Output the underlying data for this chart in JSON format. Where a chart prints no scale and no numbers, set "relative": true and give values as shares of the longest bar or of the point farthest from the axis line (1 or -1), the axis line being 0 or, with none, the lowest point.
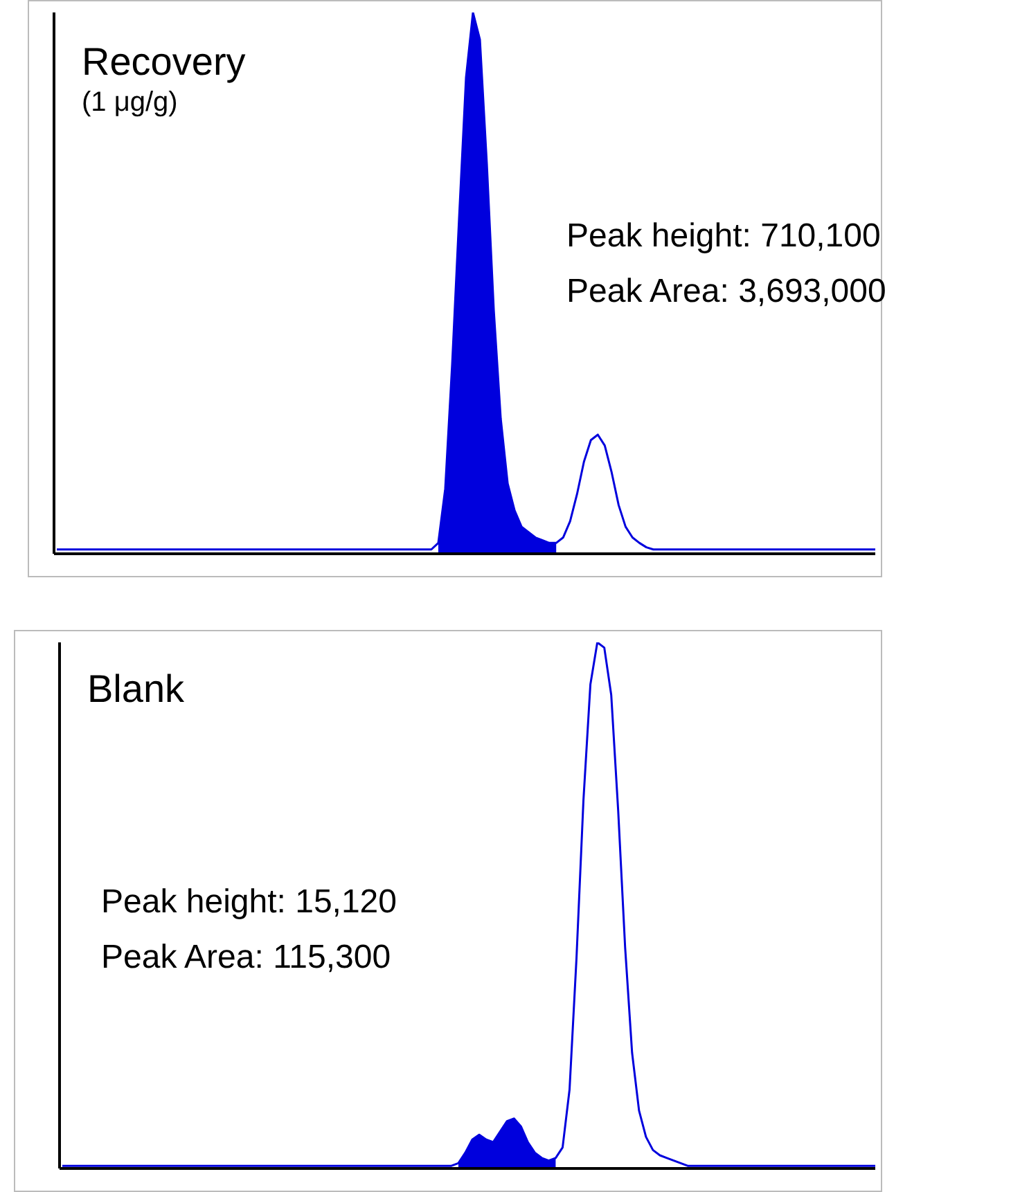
{
  "chart_data": [
    {
      "type": "line",
      "relative": true,
      "title": "Recovery",
      "subtitle": "(1 μg/g)",
      "annotations": [
        "Peak height: 710,100",
        "Peak Area: 3,693,000"
      ],
      "tick_labels": false,
      "grid": false,
      "categories": [
        null,
        null,
        null,
        null,
        null,
        null,
        null,
        null,
        null,
        null,
        null,
        null,
        null,
        null,
        null,
        null,
        null,
        null,
        null,
        null,
        null,
        null,
        null,
        null,
        null,
        null,
        null,
        null,
        null,
        null,
        null,
        null,
        null,
        null,
        null,
        null,
        null,
        null,
        null,
        null,
        null,
        null,
        null,
        null,
        null,
        null,
        null,
        null,
        null,
        null,
        null,
        null,
        null,
        null,
        null,
        null,
        null,
        null,
        null,
        null,
        null,
        null,
        null,
        null,
        null,
        null,
        null,
        null,
        null,
        null,
        null,
        null,
        null,
        null,
        null,
        null,
        null,
        null,
        null,
        null,
        null,
        null,
        null,
        null,
        null,
        null,
        null,
        null,
        null,
        null,
        null,
        null,
        null,
        null,
        null,
        null,
        null,
        null,
        null,
        null,
        null,
        null,
        null,
        null,
        null,
        null,
        null,
        null,
        null,
        null,
        null,
        null,
        null,
        null,
        null,
        null,
        null,
        null,
        null
      ],
      "series": [
        {
          "color": "#0000dd",
          "values": [
            0.008,
            0.008,
            0.008,
            0.008,
            0.008,
            0.008,
            0.008,
            0.008,
            0.008,
            0.008,
            0.008,
            0.008,
            0.008,
            0.008,
            0.008,
            0.008,
            0.008,
            0.008,
            0.008,
            0.008,
            0.008,
            0.008,
            0.008,
            0.008,
            0.008,
            0.008,
            0.008,
            0.008,
            0.008,
            0.008,
            0.008,
            0.008,
            0.008,
            0.008,
            0.008,
            0.008,
            0.008,
            0.008,
            0.008,
            0.008,
            0.008,
            0.008,
            0.008,
            0.008,
            0.008,
            0.008,
            0.008,
            0.008,
            0.008,
            0.008,
            0.008,
            0.008,
            0.008,
            0.008,
            0.008,
            0.02,
            0.12,
            0.35,
            0.62,
            0.88,
            1.0,
            0.95,
            0.72,
            0.45,
            0.25,
            0.13,
            0.08,
            0.05,
            0.04,
            0.03,
            0.025,
            0.02,
            0.02,
            0.03,
            0.06,
            0.11,
            0.17,
            0.21,
            0.22,
            0.2,
            0.15,
            0.09,
            0.05,
            0.03,
            0.02,
            0.012,
            0.008,
            0.008,
            0.008,
            0.008,
            0.008,
            0.008,
            0.008,
            0.008,
            0.008,
            0.008,
            0.008,
            0.008,
            0.008,
            0.008,
            0.008,
            0.008,
            0.008,
            0.008,
            0.008,
            0.008,
            0.008,
            0.008,
            0.008,
            0.008,
            0.008,
            0.008,
            0.008,
            0.008,
            0.008,
            0.008,
            0.008,
            0.008,
            0.008
          ],
          "lower": [
            null,
            null,
            null,
            null,
            null,
            null,
            null,
            null,
            null,
            null,
            null,
            null,
            null,
            null,
            null,
            null,
            null,
            null,
            null,
            null,
            null,
            null,
            null,
            null,
            null,
            null,
            null,
            null,
            null,
            null,
            null,
            null,
            null,
            null,
            null,
            null,
            null,
            null,
            null,
            null,
            null,
            null,
            null,
            null,
            null,
            null,
            null,
            null,
            null,
            null,
            null,
            null,
            null,
            null,
            null,
            0,
            0,
            0,
            0,
            0,
            0,
            0,
            0,
            0,
            0,
            0,
            0,
            0,
            0,
            0,
            0,
            0,
            0,
            null,
            null,
            null,
            null,
            null,
            null,
            null,
            null,
            null,
            null,
            null,
            null,
            null,
            null,
            null,
            null,
            null,
            null,
            null,
            null,
            null,
            null,
            null,
            null,
            null,
            null,
            null,
            null,
            null,
            null,
            null,
            null,
            null,
            null,
            null,
            null,
            null,
            null,
            null,
            null,
            null,
            null,
            null,
            null,
            null,
            null
          ],
          "upper": [
            null,
            null,
            null,
            null,
            null,
            null,
            null,
            null,
            null,
            null,
            null,
            null,
            null,
            null,
            null,
            null,
            null,
            null,
            null,
            null,
            null,
            null,
            null,
            null,
            null,
            null,
            null,
            null,
            null,
            null,
            null,
            null,
            null,
            null,
            null,
            null,
            null,
            null,
            null,
            null,
            null,
            null,
            null,
            null,
            null,
            null,
            null,
            null,
            null,
            null,
            null,
            null,
            null,
            null,
            null,
            0.02,
            0.12,
            0.35,
            0.62,
            0.88,
            1.0,
            0.95,
            0.72,
            0.45,
            0.25,
            0.13,
            0.08,
            0.05,
            0.04,
            0.03,
            0.025,
            0.02,
            0.02,
            null,
            null,
            null,
            null,
            null,
            null,
            null,
            null,
            null,
            null,
            null,
            null,
            null,
            null,
            null,
            null,
            null,
            null,
            null,
            null,
            null,
            null,
            null,
            null,
            null,
            null,
            null,
            null,
            null,
            null,
            null,
            null,
            null,
            null,
            null,
            null,
            null,
            null,
            null,
            null,
            null,
            null,
            null,
            null,
            null,
            null
          ]
        }
      ]
    },
    {
      "type": "line",
      "relative": true,
      "title": "Blank",
      "annotations": [
        "Peak height: 15,120",
        "Peak Area: 115,300"
      ],
      "tick_labels": false,
      "grid": false,
      "categories": [
        null,
        null,
        null,
        null,
        null,
        null,
        null,
        null,
        null,
        null,
        null,
        null,
        null,
        null,
        null,
        null,
        null,
        null,
        null,
        null,
        null,
        null,
        null,
        null,
        null,
        null,
        null,
        null,
        null,
        null,
        null,
        null,
        null,
        null,
        null,
        null,
        null,
        null,
        null,
        null,
        null,
        null,
        null,
        null,
        null,
        null,
        null,
        null,
        null,
        null,
        null,
        null,
        null,
        null,
        null,
        null,
        null,
        null,
        null,
        null,
        null,
        null,
        null,
        null,
        null,
        null,
        null,
        null,
        null,
        null,
        null,
        null,
        null,
        null,
        null,
        null,
        null,
        null,
        null,
        null,
        null,
        null,
        null,
        null,
        null,
        null,
        null,
        null,
        null,
        null,
        null,
        null,
        null,
        null,
        null,
        null,
        null,
        null,
        null,
        null,
        null,
        null,
        null,
        null,
        null,
        null,
        null,
        null,
        null,
        null,
        null,
        null,
        null,
        null,
        null,
        null,
        null,
        null
      ],
      "series": [
        {
          "color": "#0000dd",
          "values": [
            0.005,
            0.005,
            0.005,
            0.005,
            0.005,
            0.005,
            0.005,
            0.005,
            0.005,
            0.005,
            0.005,
            0.005,
            0.005,
            0.005,
            0.005,
            0.005,
            0.005,
            0.005,
            0.005,
            0.005,
            0.005,
            0.005,
            0.005,
            0.005,
            0.005,
            0.005,
            0.005,
            0.005,
            0.005,
            0.005,
            0.005,
            0.005,
            0.005,
            0.005,
            0.005,
            0.005,
            0.005,
            0.005,
            0.005,
            0.005,
            0.005,
            0.005,
            0.005,
            0.005,
            0.005,
            0.005,
            0.005,
            0.005,
            0.005,
            0.005,
            0.005,
            0.005,
            0.005,
            0.005,
            0.005,
            0.005,
            0.005,
            0.01,
            0.03,
            0.055,
            0.064,
            0.055,
            0.05,
            0.07,
            0.09,
            0.095,
            0.08,
            0.05,
            0.03,
            0.02,
            0.015,
            0.02,
            0.04,
            0.15,
            0.4,
            0.7,
            0.92,
            1.0,
            0.99,
            0.9,
            0.68,
            0.42,
            0.22,
            0.11,
            0.06,
            0.035,
            0.025,
            0.02,
            0.015,
            0.01,
            0.005,
            0.005,
            0.005,
            0.005,
            0.005,
            0.005,
            0.005,
            0.005,
            0.005,
            0.005,
            0.005,
            0.005,
            0.005,
            0.005,
            0.005,
            0.005,
            0.005,
            0.005,
            0.005,
            0.005,
            0.005,
            0.005,
            0.005,
            0.005,
            0.005,
            0.005,
            0.005,
            0.005
          ],
          "lower": [
            null,
            null,
            null,
            null,
            null,
            null,
            null,
            null,
            null,
            null,
            null,
            null,
            null,
            null,
            null,
            null,
            null,
            null,
            null,
            null,
            null,
            null,
            null,
            null,
            null,
            null,
            null,
            null,
            null,
            null,
            null,
            null,
            null,
            null,
            null,
            null,
            null,
            null,
            null,
            null,
            null,
            null,
            null,
            null,
            null,
            null,
            null,
            null,
            null,
            null,
            null,
            null,
            null,
            null,
            null,
            null,
            null,
            0,
            0,
            0,
            0,
            0,
            0,
            0,
            0,
            0,
            0,
            0,
            0,
            0,
            0,
            0,
            null,
            null,
            null,
            null,
            null,
            null,
            null,
            null,
            null,
            null,
            null,
            null,
            null,
            null,
            null,
            null,
            null,
            null,
            null,
            null,
            null,
            null,
            null,
            null,
            null,
            null,
            null,
            null,
            null,
            null,
            null,
            null,
            null,
            null,
            null,
            null,
            null,
            null,
            null,
            null,
            null,
            null,
            null,
            null,
            null,
            null
          ],
          "upper": [
            null,
            null,
            null,
            null,
            null,
            null,
            null,
            null,
            null,
            null,
            null,
            null,
            null,
            null,
            null,
            null,
            null,
            null,
            null,
            null,
            null,
            null,
            null,
            null,
            null,
            null,
            null,
            null,
            null,
            null,
            null,
            null,
            null,
            null,
            null,
            null,
            null,
            null,
            null,
            null,
            null,
            null,
            null,
            null,
            null,
            null,
            null,
            null,
            null,
            null,
            null,
            null,
            null,
            null,
            null,
            null,
            null,
            0.01,
            0.03,
            0.055,
            0.064,
            0.055,
            0.05,
            0.07,
            0.09,
            0.095,
            0.08,
            0.05,
            0.03,
            0.02,
            0.015,
            0.02,
            null,
            null,
            null,
            null,
            null,
            null,
            null,
            null,
            null,
            null,
            null,
            null,
            null,
            null,
            null,
            null,
            null,
            null,
            null,
            null,
            null,
            null,
            null,
            null,
            null,
            null,
            null,
            null,
            null,
            null,
            null,
            null,
            null,
            null,
            null,
            null,
            null,
            null,
            null,
            null,
            null,
            null,
            null,
            null,
            null,
            null
          ]
        }
      ]
    }
  ]
}
